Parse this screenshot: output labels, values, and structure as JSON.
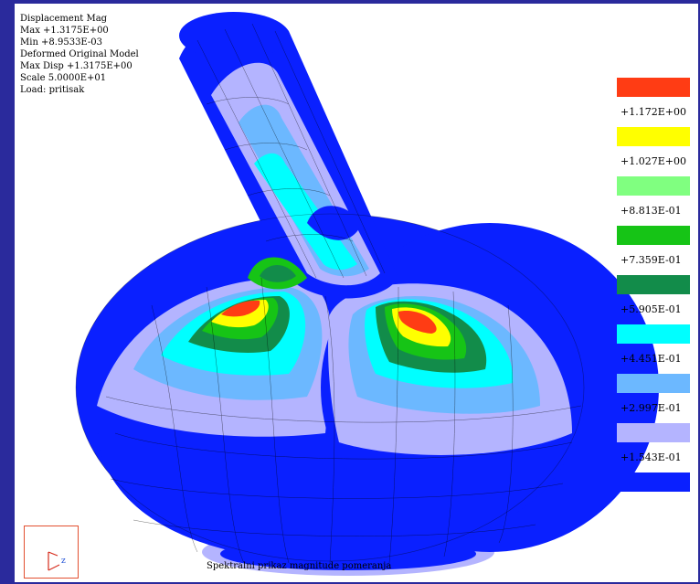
{
  "info": {
    "lines": [
      "Displacement Mag",
      "Max +1.3175E+00",
      "Min +8.9533E-03",
      "Deformed Original Model",
      "Max Disp +1.3175E+00",
      "Scale 5.0000E+01",
      "Load: pritisak"
    ]
  },
  "legend": {
    "colors": [
      "#ff3c14",
      "#ffff00",
      "#80ff80",
      "#16c416",
      "#128c4a",
      "#00ffff",
      "#6cb8ff",
      "#b4b4ff",
      "#0a20ff"
    ],
    "labels": [
      "+1.172E+00",
      "+1.027E+00",
      "+8.813E-01",
      "+7.359E-01",
      "+5.905E-01",
      "+4.451E-01",
      "+2.997E-01",
      "+1.543E-01"
    ]
  },
  "triad": {
    "axis_label": "z"
  },
  "caption": "Spektralni prikaz magnitude pomeranja"
}
